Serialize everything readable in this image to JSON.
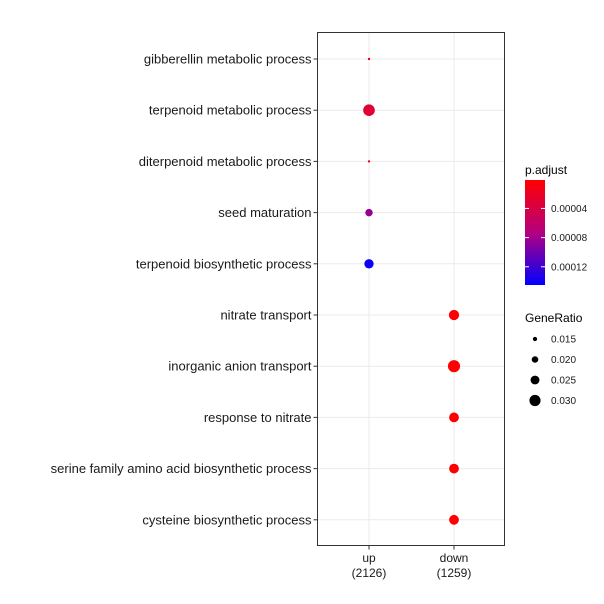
{
  "chart_data": {
    "type": "scatter",
    "title": "",
    "xlabel": "",
    "ylabel": "",
    "grid": true,
    "legend_placement": "right",
    "x_categories": [
      {
        "label": "up",
        "sublabel": "(2126)"
      },
      {
        "label": "down",
        "sublabel": "(1259)"
      }
    ],
    "y_categories": [
      "gibberellin metabolic process",
      "terpenoid metabolic process",
      "diterpenoid metabolic process",
      "seed maturation",
      "terpenoid biosynthetic process",
      "nitrate transport",
      "inorganic anion transport",
      "response to nitrate",
      "serine family amino acid biosynthetic process",
      "cysteine biosynthetic process"
    ],
    "points": [
      {
        "x": "up",
        "y": "gibberellin metabolic process",
        "gene_ratio": 0.008,
        "p_adjust": 1.5e-05
      },
      {
        "x": "up",
        "y": "terpenoid metabolic process",
        "gene_ratio": 0.031,
        "p_adjust": 3e-05
      },
      {
        "x": "up",
        "y": "diterpenoid metabolic process",
        "gene_ratio": 0.008,
        "p_adjust": 2e-05
      },
      {
        "x": "up",
        "y": "seed maturation",
        "gene_ratio": 0.022,
        "p_adjust": 8.5e-05
      },
      {
        "x": "up",
        "y": "terpenoid biosynthetic process",
        "gene_ratio": 0.026,
        "p_adjust": 0.00014
      },
      {
        "x": "down",
        "y": "nitrate transport",
        "gene_ratio": 0.028,
        "p_adjust": 1e-06
      },
      {
        "x": "down",
        "y": "inorganic anion transport",
        "gene_ratio": 0.032,
        "p_adjust": 1e-06
      },
      {
        "x": "down",
        "y": "response to nitrate",
        "gene_ratio": 0.027,
        "p_adjust": 1e-06
      },
      {
        "x": "down",
        "y": "serine family amino acid biosynthetic process",
        "gene_ratio": 0.027,
        "p_adjust": 1e-06
      },
      {
        "x": "down",
        "y": "cysteine biosynthetic process",
        "gene_ratio": 0.027,
        "p_adjust": 1e-06
      }
    ],
    "color_legend": {
      "title": "p.adjust",
      "range": [
        1e-06,
        0.000145
      ],
      "low_color": "#ff0000",
      "high_color": "#0000ff",
      "ticks": [
        {
          "value": 4e-05,
          "label": "0.00004"
        },
        {
          "value": 8e-05,
          "label": "0.00008"
        },
        {
          "value": 0.00012,
          "label": "0.00012"
        }
      ]
    },
    "size_legend": {
      "title": "GeneRatio",
      "entries": [
        {
          "value": 0.015,
          "label": "0.015"
        },
        {
          "value": 0.02,
          "label": "0.020"
        },
        {
          "value": 0.025,
          "label": "0.025"
        },
        {
          "value": 0.03,
          "label": "0.030"
        }
      ]
    }
  }
}
